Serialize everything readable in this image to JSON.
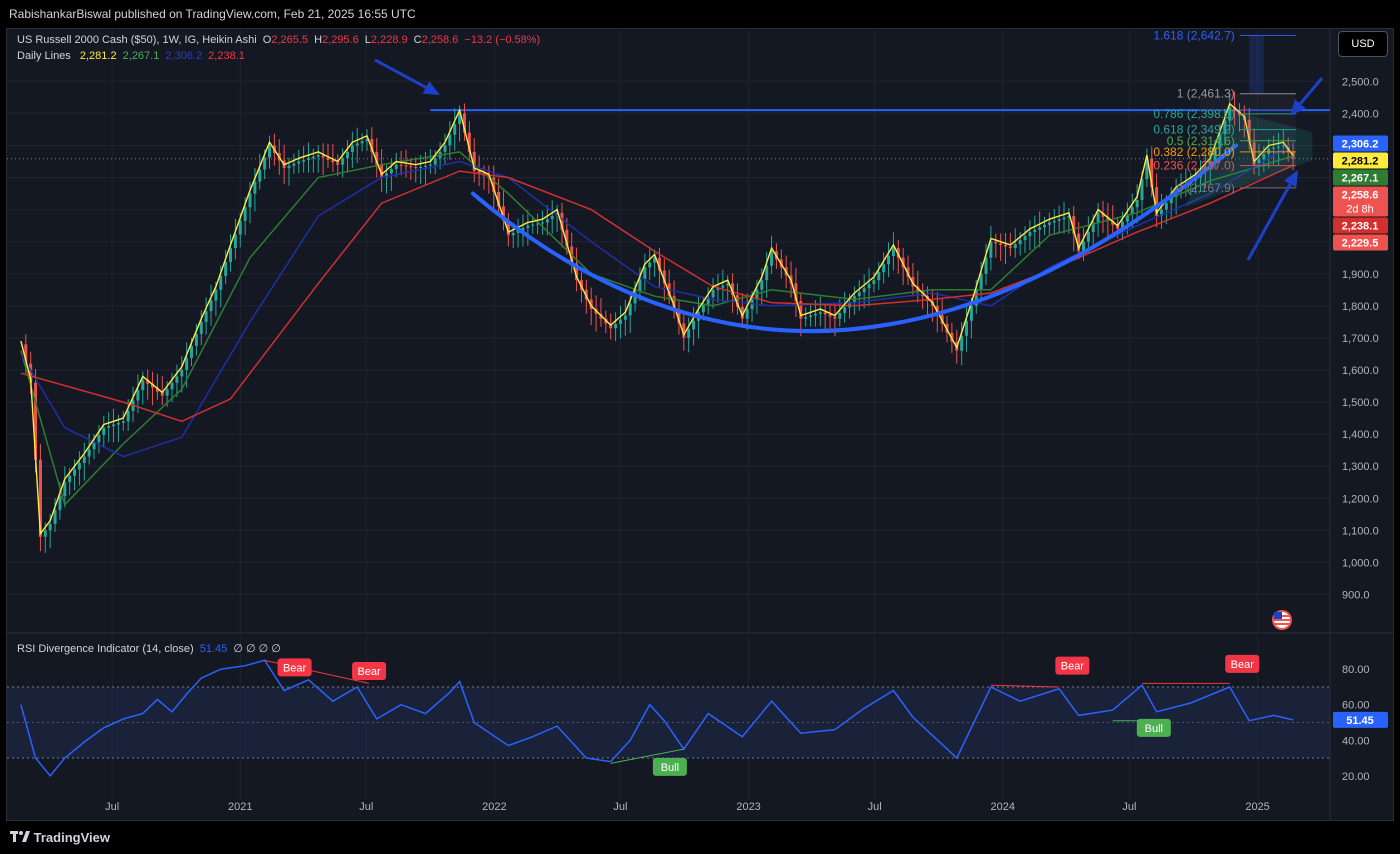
{
  "header": {
    "published": "RabishankarBiswal published on TradingView.com, Feb 21, 2025 16:55 UTC",
    "currency_button": "USD"
  },
  "legend": {
    "symbol": "US Russell 2000 Cash ($50), 1W, IG, Heikin Ashi",
    "o_label": "O",
    "o": "2,265.5",
    "h_label": "H",
    "h": "2,295.6",
    "l_label": "L",
    "l": "2,228.9",
    "c_label": "C",
    "c": "2,258.6",
    "change": "−13.2 (−0.58%)",
    "daily_lines_label": "Daily Lines",
    "dl1": "2,281.2",
    "dl2": "2,267.1",
    "dl3": "2,306.2",
    "dl4": "2,238.1"
  },
  "rsi_legend": {
    "label": "RSI Divergence Indicator (14, close)",
    "value": "51.45",
    "extras": "∅ ∅ ∅ ∅"
  },
  "footer": {
    "brand": "TradingView"
  },
  "colors": {
    "background": "#141823",
    "bull": "#26a69a",
    "bear": "#ef5350",
    "yellow": "#ffeb3b",
    "green_line": "#2e7d32",
    "blue_line": "#1e2fa8",
    "red_line": "#d32f2f",
    "cup": "#2962ff",
    "rsi": "#2962ff"
  },
  "icons": {
    "flag": "us-flag-icon",
    "logo": "tradingview-logo-icon"
  },
  "chart_data": [
    {
      "type": "candlestick",
      "title": "US Russell 2000 Cash ($50), 1W, IG, Heikin Ashi",
      "x_ticks": [
        "Jul",
        "2021",
        "Jul",
        "2022",
        "Jul",
        "2023",
        "Jul",
        "2024",
        "Jul",
        "2025"
      ],
      "x_tick_dates": [
        "2020-07-01",
        "2021-01-01",
        "2021-07-01",
        "2022-01-01",
        "2022-07-01",
        "2023-01-01",
        "2023-07-01",
        "2024-01-01",
        "2024-07-01",
        "2025-01-01"
      ],
      "y_ticks": [
        "900.0",
        "1,000.0",
        "1,100.0",
        "1,200.0",
        "1,300.0",
        "1,400.0",
        "1,500.0",
        "1,600.0",
        "1,700.0",
        "1,800.0",
        "1,900.0",
        "2,000.0",
        "2,100.0",
        "2,200.0",
        "2,300.0",
        "2,400.0",
        "2,500.0"
      ],
      "y_tick_values": [
        900,
        1000,
        1100,
        1200,
        1300,
        1400,
        1500,
        1600,
        1700,
        1800,
        1900,
        2000,
        2100,
        2200,
        2300,
        2400,
        2500
      ],
      "ylim": [
        780,
        2660
      ],
      "xlim": [
        "2020-02-01",
        "2025-04-15"
      ],
      "close_points": [
        [
          "2020-02-21",
          1680
        ],
        [
          "2020-03-06",
          1560
        ],
        [
          "2020-03-20",
          1080
        ],
        [
          "2020-04-03",
          1120
        ],
        [
          "2020-04-24",
          1250
        ],
        [
          "2020-05-22",
          1330
        ],
        [
          "2020-06-19",
          1420
        ],
        [
          "2020-07-17",
          1440
        ],
        [
          "2020-08-14",
          1570
        ],
        [
          "2020-09-11",
          1520
        ],
        [
          "2020-10-09",
          1600
        ],
        [
          "2020-11-06",
          1750
        ],
        [
          "2020-11-27",
          1850
        ],
        [
          "2020-12-18",
          1980
        ],
        [
          "2021-01-15",
          2150
        ],
        [
          "2021-02-12",
          2300
        ],
        [
          "2021-03-05",
          2230
        ],
        [
          "2021-03-26",
          2250
        ],
        [
          "2021-04-23",
          2270
        ],
        [
          "2021-05-21",
          2240
        ],
        [
          "2021-06-11",
          2300
        ],
        [
          "2021-07-02",
          2320
        ],
        [
          "2021-07-23",
          2200
        ],
        [
          "2021-08-13",
          2240
        ],
        [
          "2021-09-10",
          2230
        ],
        [
          "2021-10-01",
          2240
        ],
        [
          "2021-10-22",
          2300
        ],
        [
          "2021-11-12",
          2400
        ],
        [
          "2021-12-03",
          2220
        ],
        [
          "2021-12-24",
          2200
        ],
        [
          "2022-01-21",
          2020
        ],
        [
          "2022-02-18",
          2050
        ],
        [
          "2022-03-11",
          2060
        ],
        [
          "2022-04-01",
          2090
        ],
        [
          "2022-04-29",
          1880
        ],
        [
          "2022-05-20",
          1790
        ],
        [
          "2022-06-17",
          1730
        ],
        [
          "2022-07-08",
          1770
        ],
        [
          "2022-08-05",
          1920
        ],
        [
          "2022-08-19",
          1950
        ],
        [
          "2022-09-16",
          1790
        ],
        [
          "2022-09-30",
          1700
        ],
        [
          "2022-10-21",
          1780
        ],
        [
          "2022-11-11",
          1850
        ],
        [
          "2022-12-02",
          1870
        ],
        [
          "2022-12-23",
          1760
        ],
        [
          "2023-01-20",
          1880
        ],
        [
          "2023-02-03",
          1970
        ],
        [
          "2023-03-03",
          1870
        ],
        [
          "2023-03-17",
          1760
        ],
        [
          "2023-04-14",
          1780
        ],
        [
          "2023-05-05",
          1760
        ],
        [
          "2023-06-02",
          1830
        ],
        [
          "2023-06-30",
          1880
        ],
        [
          "2023-07-28",
          1980
        ],
        [
          "2023-08-25",
          1860
        ],
        [
          "2023-09-22",
          1800
        ],
        [
          "2023-10-27",
          1660
        ],
        [
          "2023-11-17",
          1800
        ],
        [
          "2023-12-15",
          2000
        ],
        [
          "2024-01-12",
          1980
        ],
        [
          "2024-02-09",
          2030
        ],
        [
          "2024-03-08",
          2060
        ],
        [
          "2024-04-05",
          2080
        ],
        [
          "2024-04-19",
          1970
        ],
        [
          "2024-05-17",
          2090
        ],
        [
          "2024-06-14",
          2040
        ],
        [
          "2024-07-12",
          2130
        ],
        [
          "2024-07-26",
          2260
        ],
        [
          "2024-08-09",
          2080
        ],
        [
          "2024-09-06",
          2160
        ],
        [
          "2024-10-04",
          2200
        ],
        [
          "2024-10-25",
          2250
        ],
        [
          "2024-11-22",
          2420
        ],
        [
          "2024-12-13",
          2380
        ],
        [
          "2024-12-27",
          2240
        ],
        [
          "2025-01-17",
          2290
        ],
        [
          "2025-02-07",
          2300
        ],
        [
          "2025-02-21",
          2258.6
        ]
      ],
      "moving_averages": [
        {
          "color": "#2e7d32",
          "points": [
            [
              "2020-02-21",
              1660
            ],
            [
              "2020-04-24",
              1180
            ],
            [
              "2020-07-17",
              1370
            ],
            [
              "2020-10-09",
              1540
            ],
            [
              "2021-01-15",
              1950
            ],
            [
              "2021-04-23",
              2200
            ],
            [
              "2021-07-23",
              2240
            ],
            [
              "2021-11-12",
              2280
            ],
            [
              "2022-01-21",
              2150
            ],
            [
              "2022-05-20",
              1900
            ],
            [
              "2022-08-19",
              1830
            ],
            [
              "2022-11-11",
              1800
            ],
            [
              "2023-02-03",
              1850
            ],
            [
              "2023-06-02",
              1820
            ],
            [
              "2023-09-22",
              1850
            ],
            [
              "2023-12-15",
              1850
            ],
            [
              "2024-03-08",
              2020
            ],
            [
              "2024-07-12",
              2090
            ],
            [
              "2024-10-25",
              2190
            ],
            [
              "2025-02-21",
              2267.1
            ]
          ]
        },
        {
          "color": "#1e2fa8",
          "points": [
            [
              "2020-02-21",
              1650
            ],
            [
              "2020-04-24",
              1420
            ],
            [
              "2020-07-17",
              1330
            ],
            [
              "2020-10-09",
              1390
            ],
            [
              "2021-01-15",
              1750
            ],
            [
              "2021-04-23",
              2080
            ],
            [
              "2021-07-23",
              2200
            ],
            [
              "2021-11-12",
              2250
            ],
            [
              "2022-01-21",
              2200
            ],
            [
              "2022-05-20",
              2000
            ],
            [
              "2022-08-19",
              1860
            ],
            [
              "2022-11-11",
              1820
            ],
            [
              "2023-02-03",
              1800
            ],
            [
              "2023-06-02",
              1810
            ],
            [
              "2023-09-22",
              1840
            ],
            [
              "2023-12-15",
              1800
            ],
            [
              "2024-03-08",
              1920
            ],
            [
              "2024-07-12",
              2050
            ],
            [
              "2024-10-25",
              2150
            ],
            [
              "2025-02-21",
              2306.2
            ]
          ]
        },
        {
          "color": "#d32f2f",
          "points": [
            [
              "2020-02-21",
              1590
            ],
            [
              "2020-07-17",
              1500
            ],
            [
              "2020-10-09",
              1440
            ],
            [
              "2020-12-18",
              1510
            ],
            [
              "2021-04-23",
              1870
            ],
            [
              "2021-07-23",
              2120
            ],
            [
              "2021-11-12",
              2220
            ],
            [
              "2022-01-21",
              2200
            ],
            [
              "2022-05-20",
              2100
            ],
            [
              "2022-08-19",
              1970
            ],
            [
              "2022-11-11",
              1860
            ],
            [
              "2023-02-03",
              1810
            ],
            [
              "2023-06-02",
              1800
            ],
            [
              "2023-09-22",
              1820
            ],
            [
              "2023-12-15",
              1840
            ],
            [
              "2024-03-08",
              1910
            ],
            [
              "2024-07-12",
              2030
            ],
            [
              "2024-10-25",
              2120
            ],
            [
              "2025-02-21",
              2238.1
            ]
          ]
        }
      ],
      "fibonacci": [
        {
          "text": "1.618 (2,642.7)",
          "value": 2642.7,
          "color": "#2962ff"
        },
        {
          "text": "1 (2,461.3)",
          "value": 2461.3,
          "color": "#9598a1"
        },
        {
          "text": "0.786 (2,398.5)",
          "value": 2398.5,
          "color": "#26a69a"
        },
        {
          "text": "0.618 (2,349.2)",
          "value": 2349.2,
          "color": "#26a69a"
        },
        {
          "text": "0.5 (2,314.6)",
          "value": 2314.6,
          "color": "#4caf50"
        },
        {
          "text": "0.382 (2,280.0)",
          "value": 2280.0,
          "color": "#ff9800"
        },
        {
          "text": "0.236 (2,237.0)",
          "value": 2237.0,
          "color": "#ef5350"
        },
        {
          "text": "0 (2,167.9)",
          "value": 2167.9,
          "color": "#787b86"
        }
      ],
      "resistance_line": {
        "value": 2410,
        "from": "2021-10-01",
        "to": "2025-04-15"
      },
      "current_price_line": 2258.6,
      "price_tags": [
        {
          "text": "2,306.2",
          "value": 2306.2,
          "bg": "#2962ff",
          "fg": "#ffffff"
        },
        {
          "text": "2,281.2",
          "value": 2281.2,
          "bg": "#ffeb3b",
          "fg": "#000000"
        },
        {
          "text": "2,267.1",
          "value": 2267.1,
          "bg": "#2e7d32",
          "fg": "#ffffff"
        },
        {
          "text": "2,258.6",
          "value": 2258.6,
          "sub": "2d 8h",
          "bg": "#ef5350",
          "fg": "#ffffff"
        },
        {
          "text": "2,238.1",
          "value": 2238.1,
          "bg": "#d32f2f",
          "fg": "#ffffff"
        },
        {
          "text": "2,229.5",
          "value": 2229.5,
          "bg": "#ef5350",
          "fg": "#ffffff"
        }
      ]
    },
    {
      "type": "line",
      "title": "RSI Divergence Indicator (14, close)",
      "y_ticks": [
        "20.00",
        "40.00",
        "60.00",
        "80.00"
      ],
      "y_tick_values": [
        20,
        40,
        60,
        80
      ],
      "ylim": [
        12,
        88
      ],
      "band": [
        30,
        70
      ],
      "midline": 50,
      "last_value": "51.45",
      "points": [
        [
          "2020-02-21",
          60
        ],
        [
          "2020-03-13",
          30
        ],
        [
          "2020-04-03",
          20
        ],
        [
          "2020-04-24",
          30
        ],
        [
          "2020-05-22",
          39
        ],
        [
          "2020-06-19",
          47
        ],
        [
          "2020-07-17",
          52
        ],
        [
          "2020-08-14",
          55
        ],
        [
          "2020-09-04",
          63
        ],
        [
          "2020-09-25",
          56
        ],
        [
          "2020-10-16",
          66
        ],
        [
          "2020-11-06",
          75
        ],
        [
          "2020-12-04",
          80
        ],
        [
          "2021-01-08",
          82
        ],
        [
          "2021-02-05",
          85
        ],
        [
          "2021-03-05",
          68
        ],
        [
          "2021-04-09",
          74
        ],
        [
          "2021-05-14",
          62
        ],
        [
          "2021-06-18",
          70
        ],
        [
          "2021-07-16",
          52
        ],
        [
          "2021-08-20",
          60
        ],
        [
          "2021-09-24",
          55
        ],
        [
          "2021-10-29",
          67
        ],
        [
          "2021-11-12",
          73
        ],
        [
          "2021-12-03",
          50
        ],
        [
          "2022-01-21",
          37
        ],
        [
          "2022-02-25",
          42
        ],
        [
          "2022-04-01",
          48
        ],
        [
          "2022-05-13",
          30
        ],
        [
          "2022-06-17",
          28
        ],
        [
          "2022-07-15",
          40
        ],
        [
          "2022-08-12",
          60
        ],
        [
          "2022-09-02",
          51
        ],
        [
          "2022-09-30",
          35
        ],
        [
          "2022-11-04",
          55
        ],
        [
          "2022-12-23",
          42
        ],
        [
          "2023-02-03",
          62
        ],
        [
          "2023-03-17",
          44
        ],
        [
          "2023-05-05",
          46
        ],
        [
          "2023-06-16",
          58
        ],
        [
          "2023-07-28",
          68
        ],
        [
          "2023-08-25",
          53
        ],
        [
          "2023-10-27",
          30
        ],
        [
          "2023-12-15",
          70
        ],
        [
          "2024-01-26",
          62
        ],
        [
          "2024-03-22",
          69
        ],
        [
          "2024-04-19",
          54
        ],
        [
          "2024-06-07",
          57
        ],
        [
          "2024-07-19",
          71
        ],
        [
          "2024-08-09",
          56
        ],
        [
          "2024-09-27",
          61
        ],
        [
          "2024-11-22",
          70
        ],
        [
          "2024-12-20",
          51
        ],
        [
          "2025-01-24",
          54
        ],
        [
          "2025-02-21",
          51.45
        ]
      ],
      "annotations": [
        {
          "text": "Bear",
          "date": "2021-03-20",
          "value": 81,
          "color": "#f23645"
        },
        {
          "text": "Bear",
          "date": "2021-07-05",
          "value": 79,
          "color": "#f23645"
        },
        {
          "text": "Bull",
          "date": "2022-09-10",
          "value": 25,
          "color": "#4caf50"
        },
        {
          "text": "Bear",
          "date": "2024-04-10",
          "value": 82,
          "color": "#f23645"
        },
        {
          "text": "Bull",
          "date": "2024-08-05",
          "value": 47,
          "color": "#4caf50"
        },
        {
          "text": "Bear",
          "date": "2024-12-10",
          "value": 83,
          "color": "#f23645"
        }
      ]
    }
  ]
}
